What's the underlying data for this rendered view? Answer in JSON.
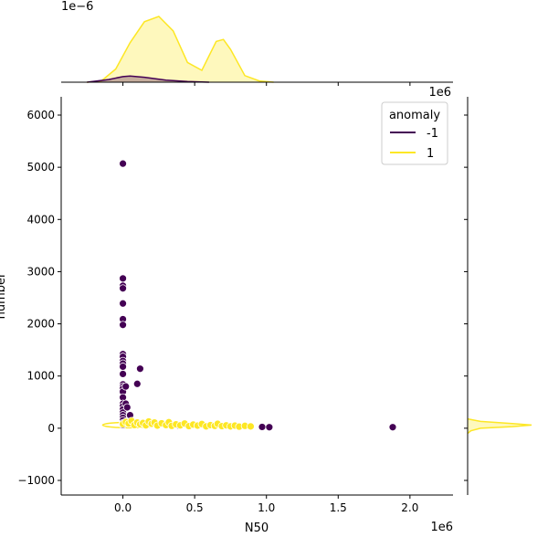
{
  "chart_data": {
    "type": "scatter",
    "title": "",
    "xlabel": "N50",
    "ylabel": "number",
    "x_offset_text": "1e6",
    "y_offset_text": "",
    "xlim": [
      -0.43,
      2.3
    ],
    "ylim": [
      -1280,
      6350
    ],
    "x_ticks": [
      0.0,
      0.5,
      1.0,
      1.5,
      2.0
    ],
    "x_tick_labels": [
      "0.0",
      "0.5",
      "1.0",
      "1.5",
      "2.0"
    ],
    "y_ticks": [
      -1000,
      0,
      1000,
      2000,
      3000,
      4000,
      5000,
      6000
    ],
    "y_tick_labels": [
      "−1000",
      "0",
      "1000",
      "2000",
      "3000",
      "4000",
      "5000",
      "6000"
    ],
    "grid": false,
    "legend": {
      "title": "anomaly",
      "placement": "top-right",
      "entries": [
        {
          "label": "-1",
          "color": "#440154"
        },
        {
          "label": "1",
          "color": "#fde725"
        }
      ]
    },
    "series": [
      {
        "name": "-1",
        "color": "#440154",
        "points": [
          [
            0.0,
            5070
          ],
          [
            0.0,
            2870
          ],
          [
            0.0,
            2730
          ],
          [
            0.0,
            2680
          ],
          [
            0.0,
            2390
          ],
          [
            0.0,
            2090
          ],
          [
            0.0,
            1980
          ],
          [
            0.0,
            1420
          ],
          [
            0.0,
            1370
          ],
          [
            0.0,
            1290
          ],
          [
            0.0,
            1240
          ],
          [
            0.0,
            1180
          ],
          [
            0.0,
            1040
          ],
          [
            0.0,
            840
          ],
          [
            0.0,
            800
          ],
          [
            0.0,
            760
          ],
          [
            0.0,
            700
          ],
          [
            0.0,
            590
          ],
          [
            0.0,
            470
          ],
          [
            0.0,
            420
          ],
          [
            0.0,
            360
          ],
          [
            0.0,
            300
          ],
          [
            0.0,
            250
          ],
          [
            0.0,
            200
          ],
          [
            0.0,
            150
          ],
          [
            0.0,
            100
          ],
          [
            0.0,
            60
          ],
          [
            0.02,
            800
          ],
          [
            0.02,
            470
          ],
          [
            0.03,
            400
          ],
          [
            0.05,
            250
          ],
          [
            0.1,
            850
          ],
          [
            0.12,
            1140
          ],
          [
            0.21,
            90
          ],
          [
            0.39,
            50
          ],
          [
            0.97,
            25
          ],
          [
            1.02,
            20
          ],
          [
            1.88,
            20
          ]
        ]
      },
      {
        "name": "1",
        "color": "#fde725",
        "points": [
          [
            0.0,
            80
          ],
          [
            0.02,
            120
          ],
          [
            0.04,
            90
          ],
          [
            0.06,
            140
          ],
          [
            0.08,
            60
          ],
          [
            0.1,
            110
          ],
          [
            0.12,
            75
          ],
          [
            0.14,
            100
          ],
          [
            0.16,
            55
          ],
          [
            0.18,
            130
          ],
          [
            0.2,
            85
          ],
          [
            0.22,
            110
          ],
          [
            0.24,
            50
          ],
          [
            0.27,
            95
          ],
          [
            0.3,
            60
          ],
          [
            0.32,
            115
          ],
          [
            0.34,
            45
          ],
          [
            0.37,
            75
          ],
          [
            0.4,
            55
          ],
          [
            0.43,
            90
          ],
          [
            0.46,
            40
          ],
          [
            0.49,
            70
          ],
          [
            0.52,
            50
          ],
          [
            0.55,
            80
          ],
          [
            0.58,
            35
          ],
          [
            0.61,
            60
          ],
          [
            0.64,
            45
          ],
          [
            0.66,
            85
          ],
          [
            0.69,
            40
          ],
          [
            0.72,
            55
          ],
          [
            0.75,
            35
          ],
          [
            0.78,
            50
          ],
          [
            0.81,
            30
          ],
          [
            0.85,
            45
          ],
          [
            0.89,
            35
          ]
        ]
      }
    ],
    "marginal_x": {
      "offset_text": "1e−6",
      "series": [
        {
          "name": "1",
          "color": "#fde725",
          "x": [
            -0.25,
            -0.15,
            -0.05,
            0.05,
            0.15,
            0.25,
            0.35,
            0.45,
            0.55,
            0.65,
            0.7,
            0.75,
            0.85,
            0.95,
            1.05
          ],
          "density": [
            0.0,
            0.02,
            0.2,
            0.6,
            0.92,
            1.0,
            0.78,
            0.3,
            0.18,
            0.62,
            0.65,
            0.5,
            0.1,
            0.02,
            0.0
          ]
        },
        {
          "name": "-1",
          "color": "#440154",
          "x": [
            -0.25,
            -0.1,
            0.0,
            0.05,
            0.15,
            0.3,
            0.45,
            0.6
          ],
          "density": [
            0.0,
            0.04,
            0.085,
            0.095,
            0.075,
            0.03,
            0.01,
            0.0
          ]
        }
      ]
    },
    "marginal_y": {
      "series": [
        {
          "name": "1",
          "color": "#fde725",
          "y": [
            -100,
            -50,
            0,
            30,
            60,
            90,
            130,
            180
          ],
          "density": [
            0.0,
            0.05,
            0.2,
            0.7,
            1.0,
            0.7,
            0.2,
            0.0
          ]
        }
      ]
    }
  }
}
